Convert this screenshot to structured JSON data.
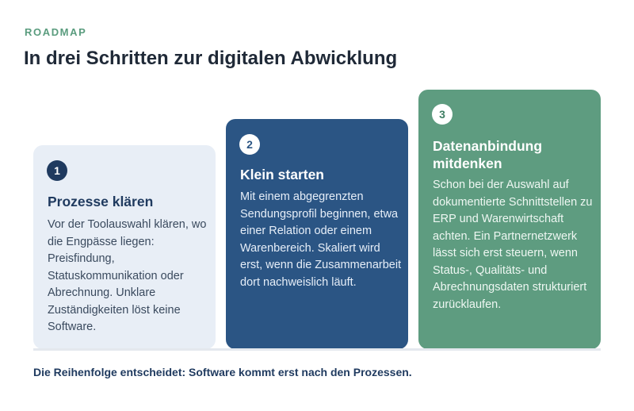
{
  "header": {
    "eyebrow": "ROADMAP",
    "title": "In drei Schritten zur digitalen Abwicklung"
  },
  "steps": [
    {
      "number": "1",
      "title": "Prozesse klären",
      "body": "Vor der Toolauswahl klären, wo die Engpässe liegen: Preisfindung, Statuskommunikation oder Abrechnung. Unklare Zuständigkeiten löst keine Software."
    },
    {
      "number": "2",
      "title": "Klein starten",
      "body": "Mit einem abgegrenzten Sendungsprofil beginnen, etwa einer Relation oder einem Warenbereich. Skaliert wird erst, wenn die Zusammenarbeit dort nachweislich läuft."
    },
    {
      "number": "3",
      "title": "Datenanbindung mitdenken",
      "body": "Schon bei der Auswahl auf dokumentierte Schnittstellen zu ERP und Warenwirtschaft achten. Ein Partnernetzwerk lässt sich erst steuern, wenn Status-, Qualitäts- und Abrechnungsdaten strukturiert zurücklaufen."
    }
  ],
  "footer": {
    "note": "Die Reihenfolge entscheidet: Software kommt erst nach den Prozessen."
  },
  "colors": {
    "accent_green": "#5e9c80",
    "navy": "#2b5584",
    "light_blue": "#e8eef6",
    "dark_text": "#1f3a5f"
  }
}
